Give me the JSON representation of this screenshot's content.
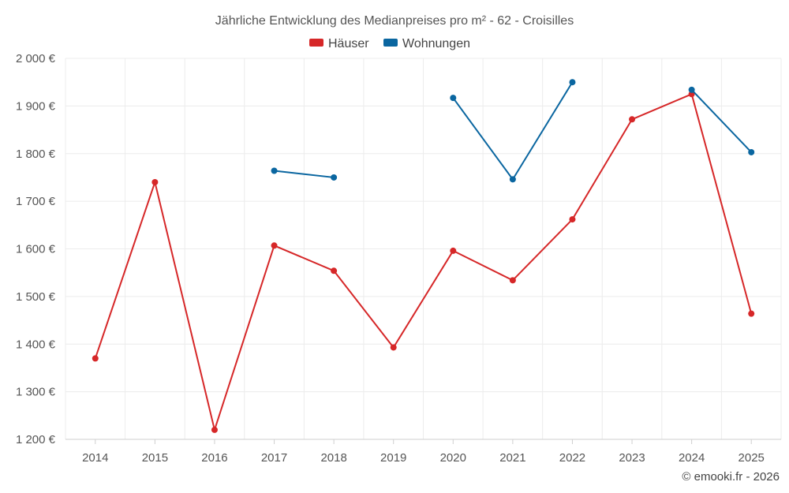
{
  "chart_data": {
    "type": "line",
    "title": "Jährliche Entwicklung des Medianpreises pro m² - 62 - Croisilles",
    "categories": [
      "2014",
      "2015",
      "2016",
      "2017",
      "2018",
      "2019",
      "2020",
      "2021",
      "2022",
      "2023",
      "2024",
      "2025"
    ],
    "ylim": [
      1200,
      2000
    ],
    "yticks": [
      1200,
      1300,
      1400,
      1500,
      1600,
      1700,
      1800,
      1900,
      2000
    ],
    "ytick_labels": [
      "1 200 €",
      "1 300 €",
      "1 400 €",
      "1 500 €",
      "1 600 €",
      "1 700 €",
      "1 800 €",
      "1 900 €",
      "2 000 €"
    ],
    "grid": true,
    "legend_position": "top-center",
    "series": [
      {
        "name": "Häuser",
        "color": "#d62728",
        "values": [
          1370,
          1740,
          1220,
          1607,
          1554,
          1393,
          1596,
          1534,
          1662,
          1872,
          1925,
          1464
        ]
      },
      {
        "name": "Wohnungen",
        "color": "#0a66a0",
        "values": [
          null,
          null,
          null,
          1764,
          1750,
          null,
          1917,
          1746,
          1950,
          null,
          1934,
          1803
        ]
      }
    ]
  },
  "credit": "© emooki.fr - 2026"
}
